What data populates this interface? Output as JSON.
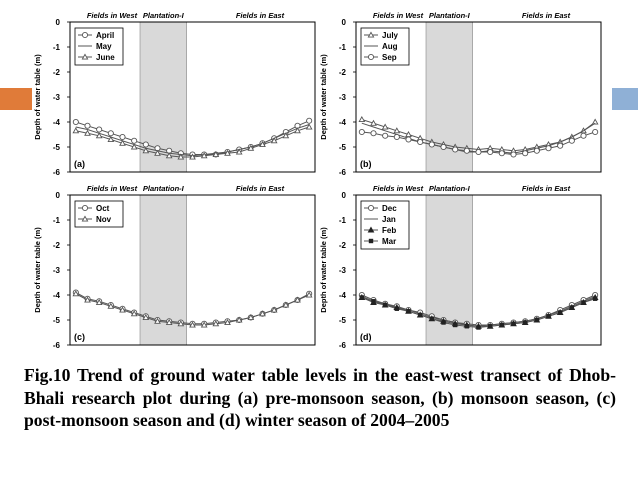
{
  "colors": {
    "band": "#d9d9d9",
    "series": "#555555",
    "accent_left": "#e07b39",
    "accent_right": "#8fb0d6"
  },
  "caption": "Fig.10 Trend of ground water table levels in the east-west transect of Dhob-Bhali research plot during (a) pre-monsoon season, (b) monsoon season, (c) post-monsoon season and (d) winter season of 2004–2005",
  "chart_data": [
    {
      "type": "line",
      "panel_label": "(a)",
      "title_left": "Fields in West",
      "title_center": "Plantation-I",
      "title_right": "Fields in East",
      "xlabel": "",
      "ylabel": "Depth of water table (m)",
      "ylim": [
        -6,
        0
      ],
      "yticks": [
        "0",
        "-1",
        "-2",
        "-3",
        "-4",
        "-5",
        "-6"
      ],
      "x_count": 21,
      "band_x": [
        5.5,
        9.5
      ],
      "legend_position": "top-left",
      "series": [
        {
          "name": "April",
          "marker": "circle",
          "values": [
            -4.0,
            -4.15,
            -4.3,
            -4.45,
            -4.6,
            -4.75,
            -4.9,
            -5.05,
            -5.15,
            -5.25,
            -5.3,
            -5.3,
            -5.3,
            -5.2,
            -5.1,
            -5.0,
            -4.85,
            -4.65,
            -4.4,
            -4.15,
            -3.95
          ]
        },
        {
          "name": "May",
          "marker": "none",
          "values": [
            -4.2,
            -4.3,
            -4.45,
            -4.6,
            -4.75,
            -4.9,
            -5.05,
            -5.15,
            -5.25,
            -5.3,
            -5.35,
            -5.3,
            -5.25,
            -5.2,
            -5.1,
            -5.0,
            -4.85,
            -4.65,
            -4.45,
            -4.25,
            -4.1
          ]
        },
        {
          "name": "June",
          "marker": "triangle",
          "values": [
            -4.35,
            -4.45,
            -4.55,
            -4.7,
            -4.85,
            -5.0,
            -5.15,
            -5.25,
            -5.35,
            -5.4,
            -5.4,
            -5.35,
            -5.3,
            -5.25,
            -5.2,
            -5.05,
            -4.9,
            -4.75,
            -4.55,
            -4.35,
            -4.2
          ]
        }
      ]
    },
    {
      "type": "line",
      "panel_label": "(b)",
      "title_left": "Fields in West",
      "title_center": "Plantation-I",
      "title_right": "Fields in East",
      "xlabel": "",
      "ylabel": "Depth of water table (m)",
      "ylim": [
        -6,
        0
      ],
      "yticks": [
        "0",
        "-1",
        "-2",
        "-3",
        "-4",
        "-5",
        "-6"
      ],
      "x_count": 21,
      "band_x": [
        5.5,
        9.5
      ],
      "legend_position": "top-left",
      "series": [
        {
          "name": "July",
          "marker": "triangle",
          "values": [
            -3.9,
            -4.05,
            -4.2,
            -4.35,
            -4.5,
            -4.65,
            -4.8,
            -4.9,
            -5.0,
            -5.05,
            -5.1,
            -5.05,
            -5.1,
            -5.15,
            -5.1,
            -5.0,
            -4.9,
            -4.8,
            -4.6,
            -4.35,
            -4.0
          ]
        },
        {
          "name": "Aug",
          "marker": "none",
          "values": [
            -4.05,
            -4.2,
            -4.35,
            -4.5,
            -4.65,
            -4.8,
            -4.9,
            -5.0,
            -5.1,
            -5.2,
            -5.2,
            -5.15,
            -5.2,
            -5.25,
            -5.15,
            -5.05,
            -4.95,
            -4.8,
            -4.6,
            -4.35,
            -4.05
          ]
        },
        {
          "name": "Sep",
          "marker": "circle",
          "values": [
            -4.4,
            -4.45,
            -4.55,
            -4.6,
            -4.7,
            -4.8,
            -4.9,
            -5.0,
            -5.1,
            -5.15,
            -5.2,
            -5.2,
            -5.25,
            -5.3,
            -5.25,
            -5.15,
            -5.05,
            -4.95,
            -4.75,
            -4.55,
            -4.4
          ]
        }
      ]
    },
    {
      "type": "line",
      "panel_label": "(c)",
      "title_left": "Fields in West",
      "title_center": "Plantation-I",
      "title_right": "Fields in East",
      "xlabel": "",
      "ylabel": "Depth of water table (m)",
      "ylim": [
        -6,
        0
      ],
      "yticks": [
        "0",
        "-1",
        "-2",
        "-3",
        "-4",
        "-5",
        "-6"
      ],
      "x_count": 21,
      "band_x": [
        5.5,
        9.5
      ],
      "legend_position": "top-left",
      "series": [
        {
          "name": "Oct",
          "marker": "circle",
          "values": [
            -3.9,
            -4.15,
            -4.25,
            -4.4,
            -4.55,
            -4.7,
            -4.85,
            -5.0,
            -5.05,
            -5.1,
            -5.15,
            -5.15,
            -5.1,
            -5.05,
            -5.0,
            -4.9,
            -4.75,
            -4.6,
            -4.4,
            -4.2,
            -3.95
          ]
        },
        {
          "name": "Nov",
          "marker": "triangle",
          "values": [
            -3.95,
            -4.2,
            -4.3,
            -4.45,
            -4.6,
            -4.75,
            -4.9,
            -5.05,
            -5.1,
            -5.15,
            -5.2,
            -5.2,
            -5.15,
            -5.1,
            -5.0,
            -4.9,
            -4.75,
            -4.6,
            -4.4,
            -4.2,
            -4.0
          ]
        }
      ]
    },
    {
      "type": "line",
      "panel_label": "(d)",
      "title_left": "Fields in West",
      "title_center": "Plantation-I",
      "title_right": "Fields in East",
      "xlabel": "",
      "ylabel": "Depth of water table (m)",
      "ylim": [
        -6,
        0
      ],
      "yticks": [
        "0",
        "-1",
        "-2",
        "-3",
        "-4",
        "-5",
        "-6"
      ],
      "x_count": 21,
      "band_x": [
        5.5,
        9.5
      ],
      "legend_position": "top-left",
      "series": [
        {
          "name": "Dec",
          "marker": "circle",
          "values": [
            -4.0,
            -4.2,
            -4.35,
            -4.45,
            -4.6,
            -4.7,
            -4.85,
            -5.0,
            -5.1,
            -5.15,
            -5.2,
            -5.2,
            -5.15,
            -5.1,
            -5.05,
            -4.95,
            -4.8,
            -4.6,
            -4.4,
            -4.2,
            -4.0
          ]
        },
        {
          "name": "Jan",
          "marker": "none",
          "values": [
            -4.05,
            -4.25,
            -4.35,
            -4.5,
            -4.6,
            -4.75,
            -4.9,
            -5.0,
            -5.1,
            -5.2,
            -5.25,
            -5.2,
            -5.15,
            -5.1,
            -5.05,
            -4.95,
            -4.8,
            -4.65,
            -4.45,
            -4.25,
            -4.05
          ]
        },
        {
          "name": "Feb",
          "marker": "triangle-filled",
          "values": [
            -4.1,
            -4.3,
            -4.4,
            -4.5,
            -4.65,
            -4.8,
            -4.95,
            -5.05,
            -5.15,
            -5.2,
            -5.25,
            -5.25,
            -5.2,
            -5.15,
            -5.1,
            -5.0,
            -4.85,
            -4.7,
            -4.5,
            -4.3,
            -4.1
          ]
        },
        {
          "name": "Mar",
          "marker": "square-filled",
          "values": [
            -4.1,
            -4.25,
            -4.4,
            -4.55,
            -4.65,
            -4.8,
            -4.95,
            -5.1,
            -5.2,
            -5.25,
            -5.3,
            -5.25,
            -5.2,
            -5.15,
            -5.1,
            -5.0,
            -4.85,
            -4.7,
            -4.5,
            -4.3,
            -4.15
          ]
        }
      ]
    }
  ]
}
